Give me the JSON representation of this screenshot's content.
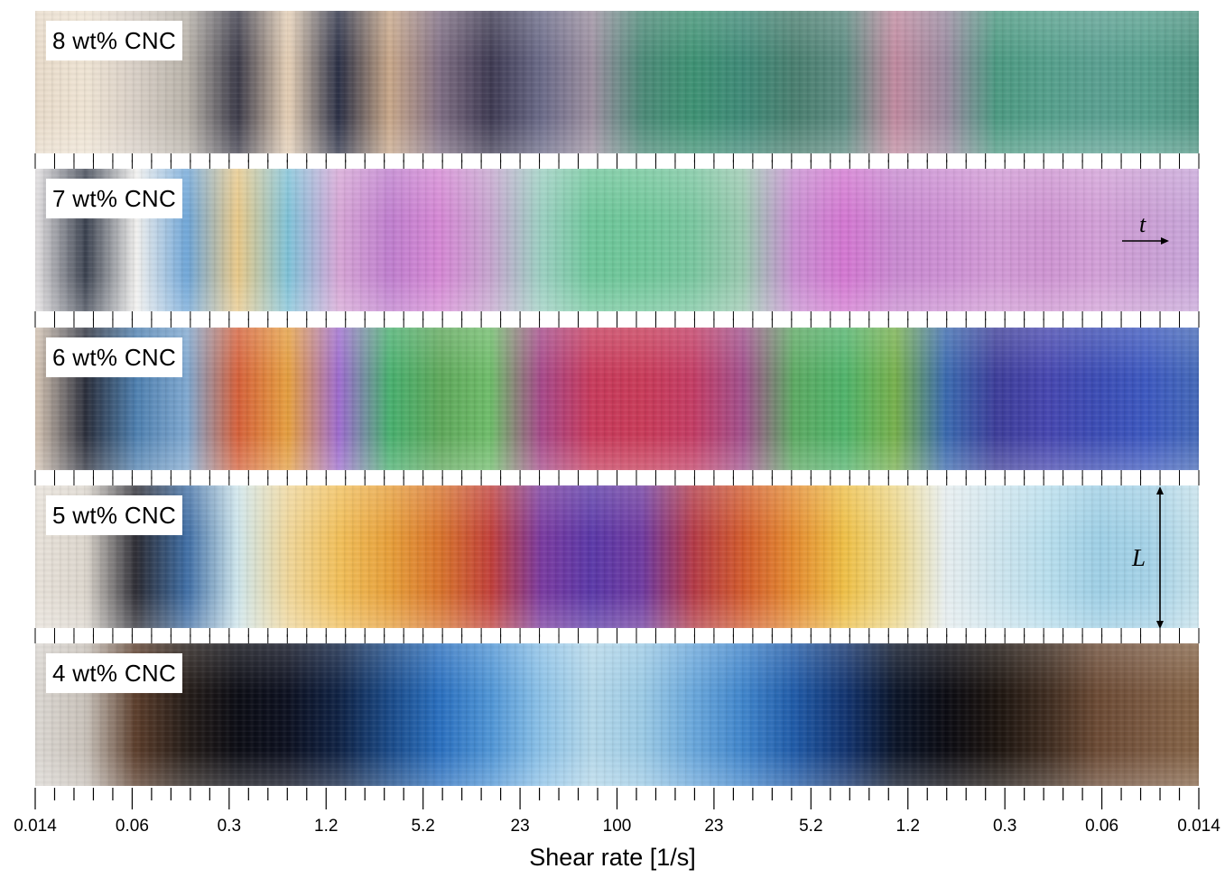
{
  "panels": [
    {
      "label": "8 wt% CNC",
      "colors": [
        "#e9dccb",
        "#efe4d4",
        "#d8cfc6",
        "#b9b3aa",
        "#3b3a48",
        "#e8d2b8",
        "#2a2f45",
        "#c9a88a",
        "#7f6e84",
        "#3e3a52",
        "#6a6a88",
        "#9c8fa0",
        "#4c8a78",
        "#3e9274",
        "#3f8a78",
        "#4a7f70",
        "#5a8a80",
        "#c18aa0",
        "#9a8aa0",
        "#4c9a82",
        "#55a08c",
        "#5aa091",
        "#56a08e",
        "#4f9583"
      ]
    },
    {
      "label": "7 wt% CNC",
      "colors": [
        "#e6e3e4",
        "#3b4250",
        "#f2f1ef",
        "#6fa6d8",
        "#e9c989",
        "#7fc3d9",
        "#d7a6d6",
        "#c07fcf",
        "#d688d5",
        "#c6a6cf",
        "#9cd0c2",
        "#6fc79b",
        "#70c79a",
        "#7ac7a0",
        "#9ac9b0",
        "#c98fd2",
        "#d477d2",
        "#c98ad1",
        "#cd90d4",
        "#d29ad6",
        "#cf95d3",
        "#d3a0d8",
        "#cba0d6",
        "#c9a6da"
      ]
    },
    {
      "label": "6 wt% CNC",
      "colors": [
        "#d8c7b6",
        "#2b2f3c",
        "#4e80b0",
        "#7fa8d0",
        "#d6603a",
        "#e6a040",
        "#9e6cd0",
        "#48b06f",
        "#5ea85a",
        "#6fbd6a",
        "#a6488a",
        "#c83a5b",
        "#c93a58",
        "#c43c64",
        "#a1508d",
        "#5caa62",
        "#4fb36a",
        "#77b04c",
        "#3a6ab0",
        "#3d3d9a",
        "#4646b0",
        "#3b4cb5",
        "#3c58c0",
        "#4468b8"
      ]
    },
    {
      "label": "5 wt% CNC",
      "colors": [
        "#e8e2da",
        "#ddd7ce",
        "#2c2c34",
        "#3f6ea5",
        "#cfe6ec",
        "#f0d79a",
        "#f2c05a",
        "#e8a03a",
        "#d9742c",
        "#c2403a",
        "#7a3aa0",
        "#5a38a8",
        "#6f3aa0",
        "#b43a48",
        "#d35b2c",
        "#e58c30",
        "#efc046",
        "#eed88a",
        "#e6eef0",
        "#cfe6ef",
        "#b9dfee",
        "#9fd0e6",
        "#a5d3e8",
        "#c6e2ec"
      ]
    },
    {
      "label": "4 wt% CNC",
      "colors": [
        "#dcd8d3",
        "#c9c2ba",
        "#5a3c2a",
        "#241c18",
        "#0b0c14",
        "#0c1020",
        "#0f2244",
        "#1a4a88",
        "#2a70c0",
        "#4f95d6",
        "#8cc2e8",
        "#b4d8ea",
        "#9ccbe6",
        "#6aa8dc",
        "#3f85cc",
        "#1f5aa8",
        "#123470",
        "#0a1428",
        "#0b0b12",
        "#1c140f",
        "#3e2c20",
        "#6b4a34",
        "#7a5840",
        "#856346"
      ]
    }
  ],
  "chart_data": {
    "type": "heatmap",
    "xlabel": "Shear rate [1/s]",
    "x_tick_labels": [
      "0.014",
      "0.06",
      "0.3",
      "1.2",
      "5.2",
      "23",
      "100",
      "23",
      "5.2",
      "1.2",
      "0.3",
      "0.06",
      "0.014"
    ],
    "rows": [
      "8 wt% CNC",
      "7 wt% CNC",
      "6 wt% CNC",
      "5 wt% CNC",
      "4 wt% CNC"
    ],
    "annotations": [
      "t",
      "L"
    ]
  }
}
